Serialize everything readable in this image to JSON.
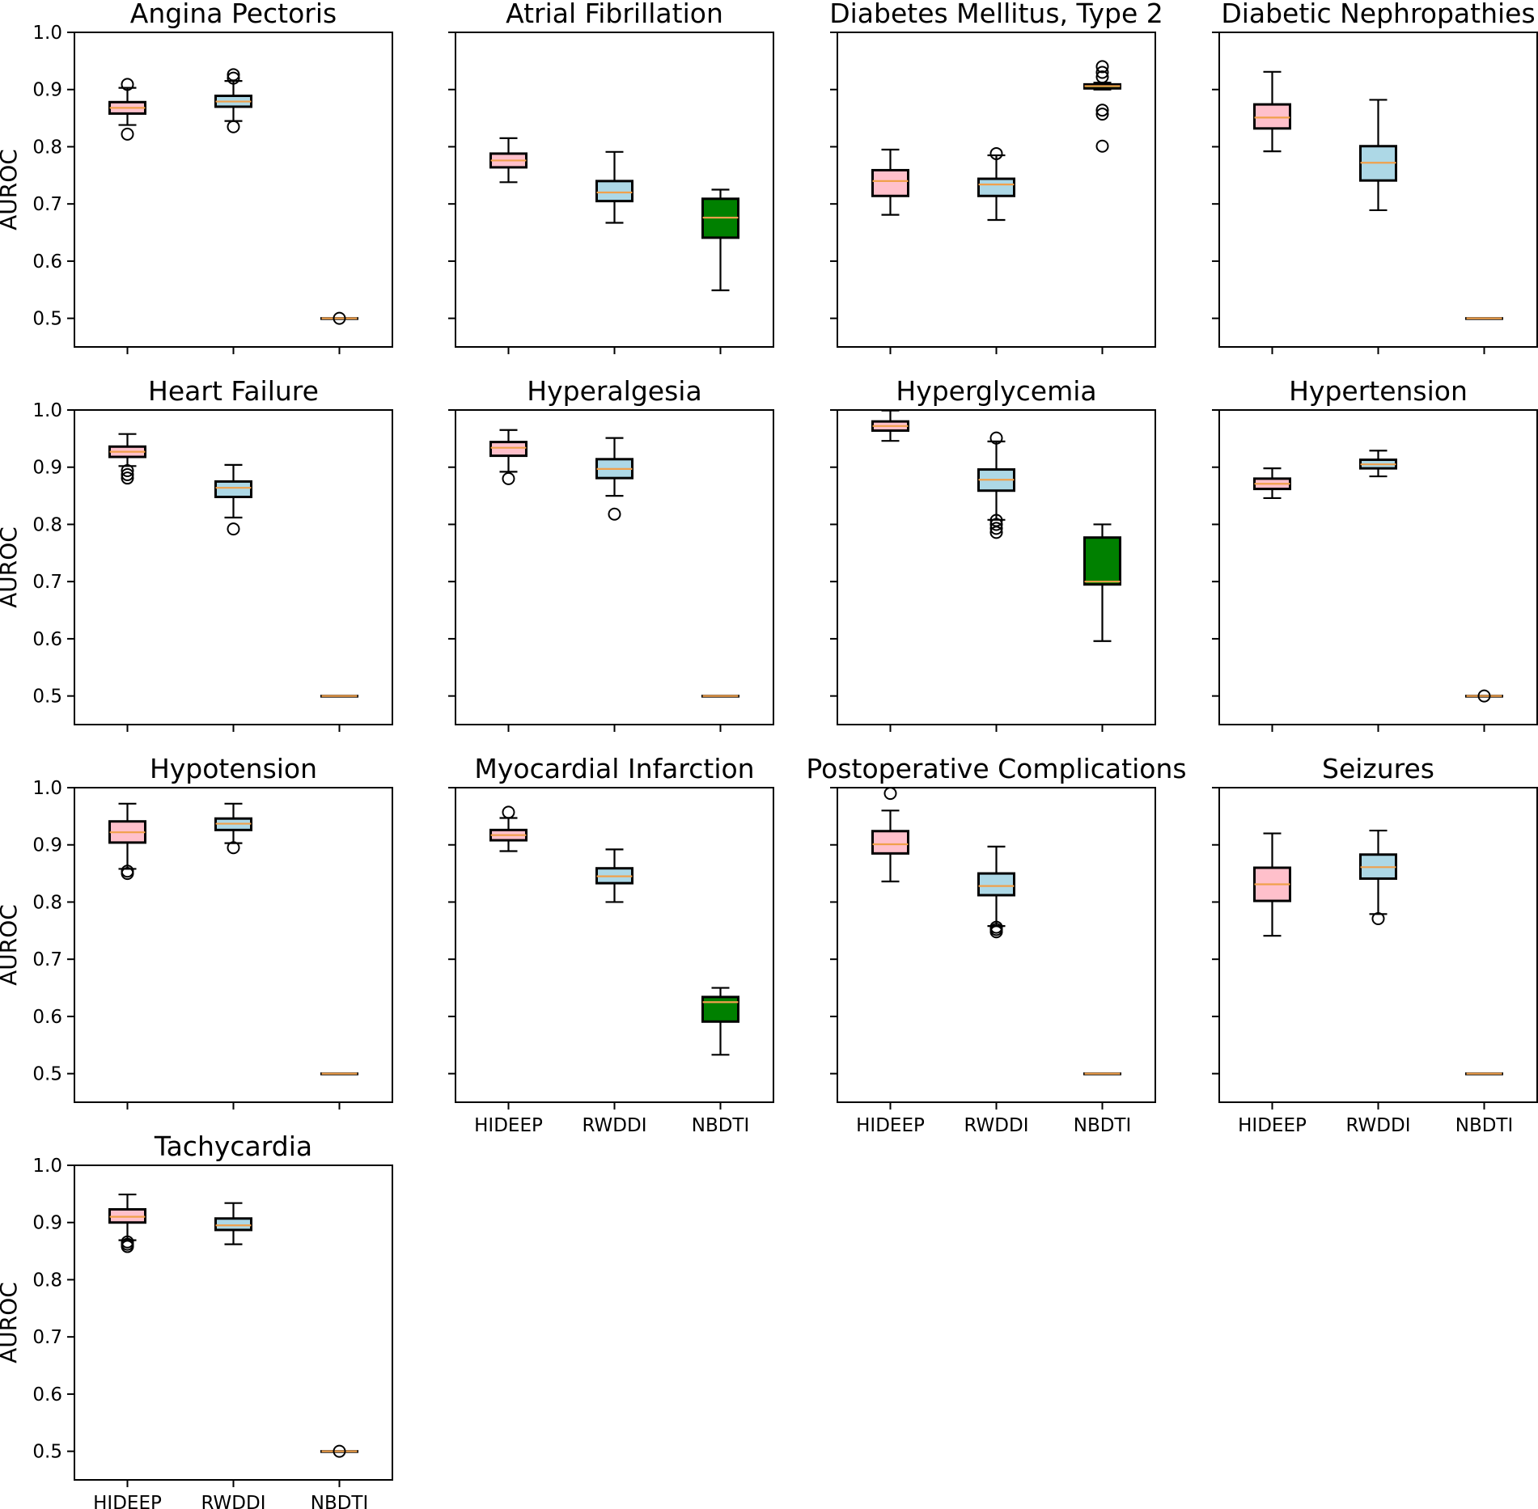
{
  "colors": {
    "HIDEEP": "#ffc0cb",
    "RWDDI": "#add8e6",
    "NBDTI": "#008000",
    "median": "#f0a04b"
  },
  "chart_data": {
    "type": "box",
    "layout": "grid 4 columns x 4 rows",
    "categories": [
      "HIDEEP",
      "RWDDI",
      "NBDTI"
    ],
    "ylabel": "AUROC",
    "ylim": [
      0.45,
      1.0
    ],
    "yticks": [
      "0.5",
      "0.6",
      "0.7",
      "0.8",
      "0.9",
      "1.0"
    ],
    "panels": [
      {
        "title": "Angina Pectoris",
        "ylabel": "AUROC",
        "show_xticks": false,
        "boxes": [
          {
            "min": 0.838,
            "q1": 0.858,
            "median": 0.868,
            "q3": 0.878,
            "max": 0.903,
            "fliers": [
              0.822,
              0.909
            ]
          },
          {
            "min": 0.845,
            "q1": 0.87,
            "median": 0.879,
            "q3": 0.889,
            "max": 0.915,
            "fliers": [
              0.835,
              0.92,
              0.926
            ]
          },
          {
            "min": 0.5,
            "q1": 0.5,
            "median": 0.5,
            "q3": 0.5,
            "max": 0.5,
            "fliers": [
              0.5
            ]
          }
        ]
      },
      {
        "title": "Atrial Fibrillation",
        "ylabel": "",
        "show_xticks": false,
        "boxes": [
          {
            "min": 0.738,
            "q1": 0.764,
            "median": 0.776,
            "q3": 0.788,
            "max": 0.815,
            "fliers": []
          },
          {
            "min": 0.667,
            "q1": 0.705,
            "median": 0.72,
            "q3": 0.74,
            "max": 0.791,
            "fliers": []
          },
          {
            "min": 0.549,
            "q1": 0.641,
            "median": 0.676,
            "q3": 0.709,
            "max": 0.725,
            "fliers": []
          }
        ]
      },
      {
        "title": "Diabetes Mellitus, Type 2",
        "ylabel": "",
        "show_xticks": false,
        "boxes": [
          {
            "min": 0.681,
            "q1": 0.714,
            "median": 0.74,
            "q3": 0.759,
            "max": 0.795,
            "fliers": []
          },
          {
            "min": 0.672,
            "q1": 0.714,
            "median": 0.734,
            "q3": 0.744,
            "max": 0.785,
            "fliers": [
              0.788
            ]
          },
          {
            "min": 0.9,
            "q1": 0.902,
            "median": 0.906,
            "q3": 0.909,
            "max": 0.912,
            "fliers": [
              0.801,
              0.857,
              0.864,
              0.922,
              0.93,
              0.94
            ]
          }
        ]
      },
      {
        "title": "Diabetic Nephropathies",
        "ylabel": "",
        "show_xticks": false,
        "boxes": [
          {
            "min": 0.792,
            "q1": 0.832,
            "median": 0.851,
            "q3": 0.874,
            "max": 0.931,
            "fliers": []
          },
          {
            "min": 0.689,
            "q1": 0.741,
            "median": 0.772,
            "q3": 0.801,
            "max": 0.882,
            "fliers": []
          },
          {
            "min": 0.5,
            "q1": 0.5,
            "median": 0.5,
            "q3": 0.5,
            "max": 0.5,
            "fliers": []
          }
        ]
      },
      {
        "title": "Heart Failure",
        "ylabel": "AUROC",
        "show_xticks": false,
        "boxes": [
          {
            "min": 0.902,
            "q1": 0.918,
            "median": 0.927,
            "q3": 0.936,
            "max": 0.958,
            "fliers": [
              0.881,
              0.887,
              0.894
            ]
          },
          {
            "min": 0.812,
            "q1": 0.848,
            "median": 0.864,
            "q3": 0.875,
            "max": 0.904,
            "fliers": [
              0.792
            ]
          },
          {
            "min": 0.5,
            "q1": 0.5,
            "median": 0.5,
            "q3": 0.5,
            "max": 0.5,
            "fliers": []
          }
        ]
      },
      {
        "title": "Hyperalgesia",
        "ylabel": "",
        "show_xticks": false,
        "boxes": [
          {
            "min": 0.892,
            "q1": 0.92,
            "median": 0.934,
            "q3": 0.944,
            "max": 0.965,
            "fliers": [
              0.88
            ]
          },
          {
            "min": 0.85,
            "q1": 0.881,
            "median": 0.897,
            "q3": 0.914,
            "max": 0.951,
            "fliers": [
              0.818
            ]
          },
          {
            "min": 0.5,
            "q1": 0.5,
            "median": 0.5,
            "q3": 0.5,
            "max": 0.5,
            "fliers": []
          }
        ]
      },
      {
        "title": "Hyperglycemia",
        "ylabel": "",
        "show_xticks": false,
        "boxes": [
          {
            "min": 0.946,
            "q1": 0.964,
            "median": 0.972,
            "q3": 0.98,
            "max": 0.999,
            "fliers": []
          },
          {
            "min": 0.808,
            "q1": 0.859,
            "median": 0.878,
            "q3": 0.896,
            "max": 0.945,
            "fliers": [
              0.786,
              0.793,
              0.8,
              0.807,
              0.951
            ]
          },
          {
            "min": 0.596,
            "q1": 0.695,
            "median": 0.7,
            "q3": 0.777,
            "max": 0.8,
            "fliers": []
          }
        ]
      },
      {
        "title": "Hypertension",
        "ylabel": "",
        "show_xticks": false,
        "boxes": [
          {
            "min": 0.846,
            "q1": 0.862,
            "median": 0.871,
            "q3": 0.88,
            "max": 0.898,
            "fliers": []
          },
          {
            "min": 0.884,
            "q1": 0.898,
            "median": 0.905,
            "q3": 0.913,
            "max": 0.929,
            "fliers": []
          },
          {
            "min": 0.5,
            "q1": 0.5,
            "median": 0.5,
            "q3": 0.5,
            "max": 0.5,
            "fliers": [
              0.5
            ]
          }
        ]
      },
      {
        "title": "Hypotension",
        "ylabel": "AUROC",
        "show_xticks": false,
        "boxes": [
          {
            "min": 0.858,
            "q1": 0.904,
            "median": 0.922,
            "q3": 0.941,
            "max": 0.972,
            "fliers": [
              0.85,
              0.854
            ]
          },
          {
            "min": 0.903,
            "q1": 0.926,
            "median": 0.937,
            "q3": 0.946,
            "max": 0.972,
            "fliers": [
              0.895
            ]
          },
          {
            "min": 0.5,
            "q1": 0.5,
            "median": 0.5,
            "q3": 0.5,
            "max": 0.5,
            "fliers": []
          }
        ]
      },
      {
        "title": "Myocardial Infarction",
        "ylabel": "",
        "show_xticks": true,
        "boxes": [
          {
            "min": 0.889,
            "q1": 0.908,
            "median": 0.917,
            "q3": 0.926,
            "max": 0.947,
            "fliers": [
              0.957
            ]
          },
          {
            "min": 0.8,
            "q1": 0.833,
            "median": 0.845,
            "q3": 0.859,
            "max": 0.892,
            "fliers": []
          },
          {
            "min": 0.533,
            "q1": 0.591,
            "median": 0.625,
            "q3": 0.634,
            "max": 0.65,
            "fliers": []
          }
        ]
      },
      {
        "title": "Postoperative Complications",
        "ylabel": "",
        "show_xticks": true,
        "boxes": [
          {
            "min": 0.836,
            "q1": 0.885,
            "median": 0.901,
            "q3": 0.924,
            "max": 0.96,
            "fliers": [
              0.99
            ]
          },
          {
            "min": 0.758,
            "q1": 0.812,
            "median": 0.828,
            "q3": 0.85,
            "max": 0.897,
            "fliers": [
              0.748,
              0.752,
              0.756
            ]
          },
          {
            "min": 0.5,
            "q1": 0.5,
            "median": 0.5,
            "q3": 0.5,
            "max": 0.5,
            "fliers": []
          }
        ]
      },
      {
        "title": "Seizures",
        "ylabel": "",
        "show_xticks": true,
        "boxes": [
          {
            "min": 0.741,
            "q1": 0.802,
            "median": 0.831,
            "q3": 0.86,
            "max": 0.92,
            "fliers": []
          },
          {
            "min": 0.779,
            "q1": 0.841,
            "median": 0.861,
            "q3": 0.883,
            "max": 0.925,
            "fliers": [
              0.771
            ]
          },
          {
            "min": 0.5,
            "q1": 0.5,
            "median": 0.5,
            "q3": 0.5,
            "max": 0.5,
            "fliers": []
          }
        ]
      },
      {
        "title": "Tachycardia",
        "ylabel": "AUROC",
        "show_xticks": true,
        "boxes": [
          {
            "min": 0.869,
            "q1": 0.9,
            "median": 0.91,
            "q3": 0.923,
            "max": 0.949,
            "fliers": [
              0.858,
              0.862,
              0.866
            ]
          },
          {
            "min": 0.862,
            "q1": 0.887,
            "median": 0.895,
            "q3": 0.907,
            "max": 0.934,
            "fliers": []
          },
          {
            "min": 0.5,
            "q1": 0.5,
            "median": 0.5,
            "q3": 0.5,
            "max": 0.5,
            "fliers": [
              0.5
            ]
          }
        ]
      }
    ]
  }
}
